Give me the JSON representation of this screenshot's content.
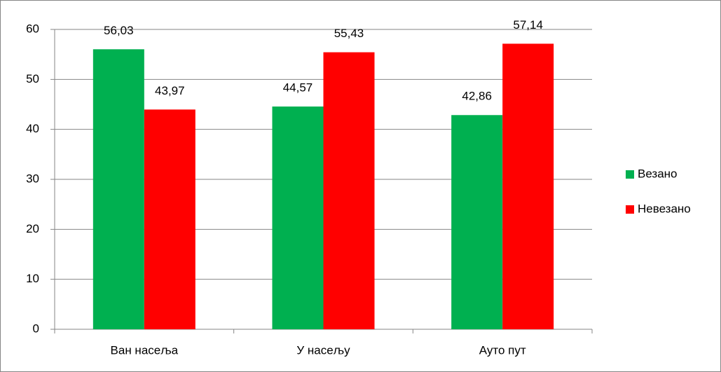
{
  "chart_data": {
    "type": "bar",
    "categories": [
      "Ван насеља",
      "У насељу",
      "Ауто пут"
    ],
    "series": [
      {
        "name": "Везано",
        "color": "#00b050",
        "values": [
          56.03,
          44.57,
          42.86
        ],
        "value_labels": [
          "56,03",
          "44,57",
          "42,86"
        ]
      },
      {
        "name": "Невезано",
        "color": "#ff0000",
        "values": [
          43.97,
          55.43,
          57.14
        ],
        "value_labels": [
          "43,97",
          "55,43",
          "57,14"
        ]
      }
    ],
    "ylim": [
      0,
      60
    ],
    "yticks": [
      0,
      10,
      20,
      30,
      40,
      50,
      60
    ],
    "grid": true,
    "legend": "right"
  }
}
